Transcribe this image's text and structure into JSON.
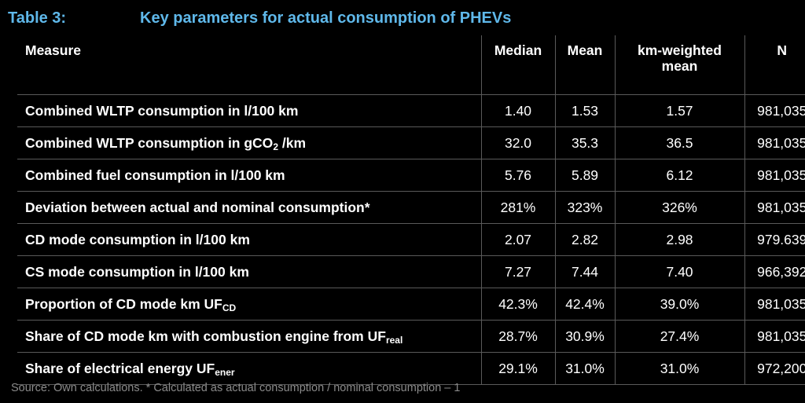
{
  "title": {
    "label": "Table 3:",
    "text": "Key parameters for actual consumption of PHEVs"
  },
  "table": {
    "headers": {
      "measure": "Measure",
      "median": "Median",
      "mean": "Mean",
      "km_weighted_mean_line1": "km-weighted",
      "km_weighted_mean_line2": "mean",
      "n": "N"
    },
    "rows": [
      {
        "measure": "Combined WLTP consumption in l/100 km",
        "measure_sub": "",
        "measure_suffix": "",
        "median": "1.40",
        "mean": "1.53",
        "km_weighted_mean": "1.57",
        "n": "981,035"
      },
      {
        "measure": "Combined WLTP consumption in gCO",
        "measure_sub": "2",
        "measure_suffix": " /km",
        "median": "32.0",
        "mean": "35.3",
        "km_weighted_mean": "36.5",
        "n": "981,035"
      },
      {
        "measure": "Combined fuel consumption in l/100 km",
        "measure_sub": "",
        "measure_suffix": "",
        "median": "5.76",
        "mean": "5.89",
        "km_weighted_mean": "6.12",
        "n": "981,035"
      },
      {
        "measure": "Deviation between actual and nominal consumption*",
        "measure_sub": "",
        "measure_suffix": "",
        "median": "281%",
        "mean": "323%",
        "km_weighted_mean": "326%",
        "n": "981,035"
      },
      {
        "measure": "CD mode consumption in l/100 km",
        "measure_sub": "",
        "measure_suffix": "",
        "median": "2.07",
        "mean": "2.82",
        "km_weighted_mean": "2.98",
        "n": "979.639"
      },
      {
        "measure": "CS mode consumption in l/100 km",
        "measure_sub": "",
        "measure_suffix": "",
        "median": "7.27",
        "mean": "7.44",
        "km_weighted_mean": "7.40",
        "n": "966,392"
      },
      {
        "measure": "Proportion of CD mode km UF",
        "measure_sub": "CD",
        "measure_suffix": "",
        "median": "42.3%",
        "mean": "42.4%",
        "km_weighted_mean": "39.0%",
        "n": "981,035"
      },
      {
        "measure": "Share of CD mode km with combustion engine from UF",
        "measure_sub": "real",
        "measure_suffix": "",
        "median": "28.7%",
        "mean": "30.9%",
        "km_weighted_mean": "27.4%",
        "n": "981,035"
      },
      {
        "measure": "Share of electrical energy UF",
        "measure_sub": "ener",
        "measure_suffix": "",
        "median": "29.1%",
        "mean": "31.0%",
        "km_weighted_mean": "31.0%",
        "n": "972,200"
      }
    ]
  },
  "footnote": "Source: Own calculations. * Calculated as actual consumption / nominal consumption – 1",
  "colors": {
    "background": "#000000",
    "title": "#5fb8ea",
    "text": "#ffffff",
    "grid": "#5a5a5a",
    "footnote": "#8a8a8a"
  }
}
